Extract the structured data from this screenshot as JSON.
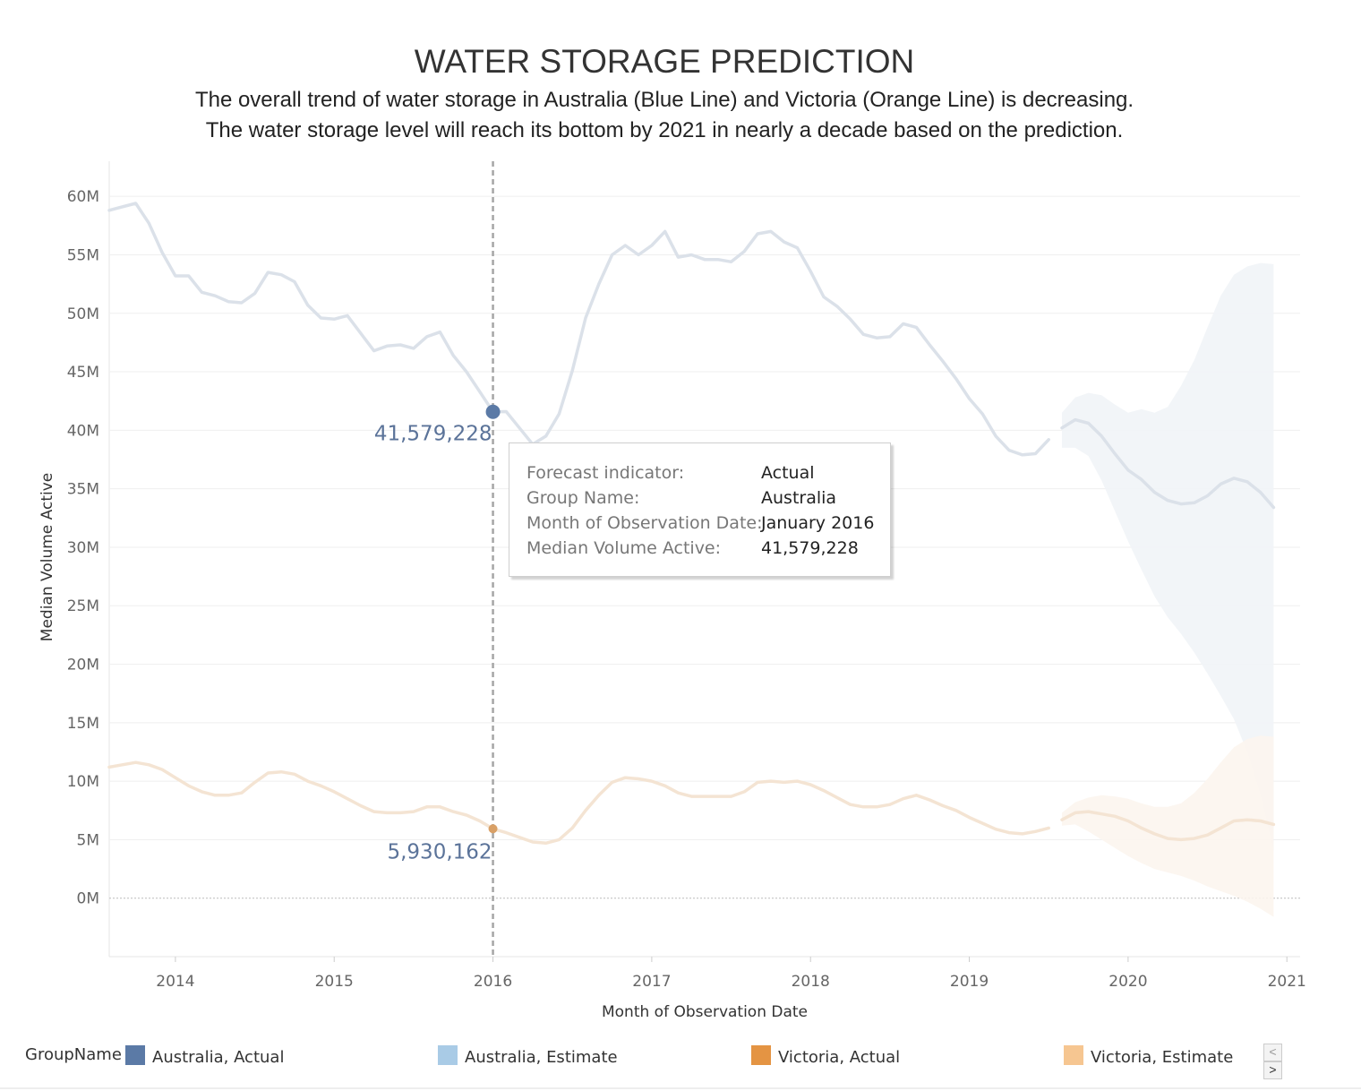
{
  "header": {
    "title": "WATER STORAGE PREDICTION",
    "subtitle_line1": "The overall trend of water storage in Australia (Blue Line) and Victoria (Orange Line) is decreasing.",
    "subtitle_line2": "The water storage level will reach its bottom by 2021 in nearly a decade based on the prediction."
  },
  "colors": {
    "australia_actual": "#5b7aa6",
    "australia_estimate": "#a9cbe6",
    "victoria_actual": "#e49443",
    "victoria_estimate": "#f6c691",
    "australia_line_faded": "#dbe1e9",
    "victoria_line_faded": "#f4e4d3",
    "band_australia": "#f1f4f7",
    "band_victoria": "#fcf5ee",
    "gridline": "#efefef"
  },
  "chart_data": {
    "type": "line",
    "title": "WATER STORAGE PREDICTION",
    "xlabel": "Month of Observation Date",
    "ylabel": "Median Volume Active",
    "xlim": [
      "2013-08",
      "2021-02"
    ],
    "ylim": [
      -5000000,
      63000000
    ],
    "grid": true,
    "legend_position": "bottom",
    "y_ticks": [
      {
        "value": 0,
        "label": "0M"
      },
      {
        "value": 5000000,
        "label": "5M"
      },
      {
        "value": 10000000,
        "label": "10M"
      },
      {
        "value": 15000000,
        "label": "15M"
      },
      {
        "value": 20000000,
        "label": "20M"
      },
      {
        "value": 25000000,
        "label": "25M"
      },
      {
        "value": 30000000,
        "label": "30M"
      },
      {
        "value": 35000000,
        "label": "35M"
      },
      {
        "value": 40000000,
        "label": "40M"
      },
      {
        "value": 45000000,
        "label": "45M"
      },
      {
        "value": 50000000,
        "label": "50M"
      },
      {
        "value": 55000000,
        "label": "55M"
      },
      {
        "value": 60000000,
        "label": "60M"
      }
    ],
    "x_ticks": [
      "2014",
      "2015",
      "2016",
      "2017",
      "2018",
      "2019",
      "2020",
      "2021"
    ],
    "series": [
      {
        "name": "Australia, Actual",
        "x": [
          "2013-08",
          "2013-10",
          "2013-11",
          "2013-12",
          "2014-01",
          "2014-02",
          "2014-03",
          "2014-04",
          "2014-05",
          "2014-06",
          "2014-07",
          "2014-08",
          "2014-09",
          "2014-10",
          "2014-11",
          "2014-12",
          "2015-01",
          "2015-02",
          "2015-03",
          "2015-04",
          "2015-05",
          "2015-06",
          "2015-07",
          "2015-08",
          "2015-09",
          "2015-10",
          "2015-11",
          "2015-12",
          "2016-01",
          "2016-02",
          "2016-03",
          "2016-04",
          "2016-05",
          "2016-06",
          "2016-07",
          "2016-08",
          "2016-09",
          "2016-10",
          "2016-11",
          "2016-12",
          "2017-01",
          "2017-02",
          "2017-03",
          "2017-04",
          "2017-05",
          "2017-06",
          "2017-07",
          "2017-08",
          "2017-09",
          "2017-10",
          "2017-11",
          "2017-12",
          "2018-01",
          "2018-02",
          "2018-03",
          "2018-04",
          "2018-05",
          "2018-06",
          "2018-07",
          "2018-08",
          "2018-09",
          "2018-10",
          "2018-11",
          "2018-12",
          "2019-01",
          "2019-02",
          "2019-03",
          "2019-04",
          "2019-05",
          "2019-06",
          "2019-07"
        ],
        "y": [
          58800000,
          59400000,
          57700000,
          55200000,
          53200000,
          53200000,
          51800000,
          51500000,
          51000000,
          50900000,
          51700000,
          53500000,
          53300000,
          52700000,
          50700000,
          49600000,
          49500000,
          49800000,
          48300000,
          46800000,
          47200000,
          47300000,
          47000000,
          48000000,
          48400000,
          46400000,
          45000000,
          43300000,
          41579228,
          41600000,
          40200000,
          38800000,
          39500000,
          41400000,
          45100000,
          49600000,
          52500000,
          55000000,
          55800000,
          55000000,
          55800000,
          57000000,
          54800000,
          55000000,
          54600000,
          54600000,
          54400000,
          55300000,
          56800000,
          57000000,
          56100000,
          55600000,
          53600000,
          51400000,
          50600000,
          49500000,
          48200000,
          47900000,
          48000000,
          49100000,
          48800000,
          47300000,
          45900000,
          44400000,
          42700000,
          41400000,
          39500000,
          38300000,
          37900000,
          38000000,
          39200000
        ]
      },
      {
        "name": "Australia, Estimate",
        "x": [
          "2019-08",
          "2019-09",
          "2019-10",
          "2019-11",
          "2019-12",
          "2020-01",
          "2020-02",
          "2020-03",
          "2020-04",
          "2020-05",
          "2020-06",
          "2020-07",
          "2020-08",
          "2020-09",
          "2020-10",
          "2020-11",
          "2020-12"
        ],
        "y": [
          40200000,
          40900000,
          40600000,
          39500000,
          38000000,
          36600000,
          35800000,
          34700000,
          34000000,
          33700000,
          33800000,
          34400000,
          35400000,
          35900000,
          35600000,
          34700000,
          33400000
        ],
        "upper": [
          41500000,
          42800000,
          43200000,
          43000000,
          42200000,
          41500000,
          41800000,
          41500000,
          42000000,
          43800000,
          46000000,
          48800000,
          51500000,
          53300000,
          54000000,
          54300000,
          54200000
        ],
        "lower": [
          38500000,
          38500000,
          37800000,
          35700000,
          33100000,
          30500000,
          28100000,
          25800000,
          24000000,
          22600000,
          21000000,
          19200000,
          17300000,
          15300000,
          12500000,
          8800000,
          4000000
        ]
      },
      {
        "name": "Victoria, Actual",
        "x": [
          "2013-08",
          "2013-10",
          "2013-11",
          "2013-12",
          "2014-01",
          "2014-02",
          "2014-03",
          "2014-04",
          "2014-05",
          "2014-06",
          "2014-07",
          "2014-08",
          "2014-09",
          "2014-10",
          "2014-11",
          "2014-12",
          "2015-01",
          "2015-02",
          "2015-03",
          "2015-04",
          "2015-05",
          "2015-06",
          "2015-07",
          "2015-08",
          "2015-09",
          "2015-10",
          "2015-11",
          "2015-12",
          "2016-01",
          "2016-02",
          "2016-03",
          "2016-04",
          "2016-05",
          "2016-06",
          "2016-07",
          "2016-08",
          "2016-09",
          "2016-10",
          "2016-11",
          "2016-12",
          "2017-01",
          "2017-02",
          "2017-03",
          "2017-04",
          "2017-05",
          "2017-06",
          "2017-07",
          "2017-08",
          "2017-09",
          "2017-10",
          "2017-11",
          "2017-12",
          "2018-01",
          "2018-02",
          "2018-03",
          "2018-04",
          "2018-05",
          "2018-06",
          "2018-07",
          "2018-08",
          "2018-09",
          "2018-10",
          "2018-11",
          "2018-12",
          "2019-01",
          "2019-02",
          "2019-03",
          "2019-04",
          "2019-05",
          "2019-06",
          "2019-07"
        ],
        "y": [
          11200000,
          11600000,
          11400000,
          11000000,
          10300000,
          9600000,
          9100000,
          8800000,
          8800000,
          9000000,
          9900000,
          10700000,
          10800000,
          10600000,
          10000000,
          9600000,
          9100000,
          8500000,
          7900000,
          7400000,
          7300000,
          7300000,
          7400000,
          7800000,
          7800000,
          7400000,
          7100000,
          6600000,
          5930162,
          5600000,
          5200000,
          4800000,
          4700000,
          5000000,
          6000000,
          7500000,
          8800000,
          9900000,
          10300000,
          10200000,
          10000000,
          9600000,
          9000000,
          8700000,
          8700000,
          8700000,
          8700000,
          9100000,
          9900000,
          10000000,
          9900000,
          10000000,
          9700000,
          9200000,
          8600000,
          8000000,
          7800000,
          7800000,
          8000000,
          8500000,
          8800000,
          8400000,
          7900000,
          7500000,
          6900000,
          6400000,
          5900000,
          5600000,
          5500000,
          5700000,
          6000000
        ]
      },
      {
        "name": "Victoria, Estimate",
        "x": [
          "2019-08",
          "2019-09",
          "2019-10",
          "2019-11",
          "2019-12",
          "2020-01",
          "2020-02",
          "2020-03",
          "2020-04",
          "2020-05",
          "2020-06",
          "2020-07",
          "2020-08",
          "2020-09",
          "2020-10",
          "2020-11",
          "2020-12"
        ],
        "y": [
          6700000,
          7300000,
          7400000,
          7200000,
          7000000,
          6600000,
          6000000,
          5500000,
          5100000,
          5000000,
          5100000,
          5400000,
          6000000,
          6600000,
          6700000,
          6600000,
          6300000
        ],
        "upper": [
          7300000,
          8200000,
          8600000,
          8800000,
          8700000,
          8500000,
          8100000,
          7800000,
          7800000,
          8100000,
          9000000,
          10200000,
          11600000,
          12900000,
          13600000,
          13900000,
          13800000
        ],
        "lower": [
          6200000,
          6300000,
          5700000,
          5000000,
          4300000,
          3600000,
          3000000,
          2500000,
          2200000,
          1900000,
          1500000,
          1000000,
          600000,
          200000,
          -300000,
          -900000,
          -1600000
        ]
      }
    ],
    "reference_line": {
      "x": "2016-01"
    },
    "highlighted_points": [
      {
        "series": "Australia, Actual",
        "x": "2016-01",
        "y": 41579228,
        "label": "41,579,228"
      },
      {
        "series": "Victoria, Actual",
        "x": "2016-01",
        "y": 5930162,
        "label": "5,930,162"
      }
    ]
  },
  "tooltip": {
    "rows": [
      {
        "key": "Forecast indicator:",
        "value": "Actual"
      },
      {
        "key": "Group Name:",
        "value": "Australia"
      },
      {
        "key": "Month of Observation Date:",
        "value": "January 2016"
      },
      {
        "key": "Median Volume Active:",
        "value": "41,579,228"
      }
    ]
  },
  "legend": {
    "title": "GroupName",
    "items": [
      {
        "label": "Australia, Actual",
        "color": "#5b7aa6"
      },
      {
        "label": "Australia, Estimate",
        "color": "#a9cbe6"
      },
      {
        "label": "Victoria, Actual",
        "color": "#e49443"
      },
      {
        "label": "Victoria, Estimate",
        "color": "#f6c691"
      }
    ],
    "pager_prev": "<",
    "pager_next": ">"
  }
}
